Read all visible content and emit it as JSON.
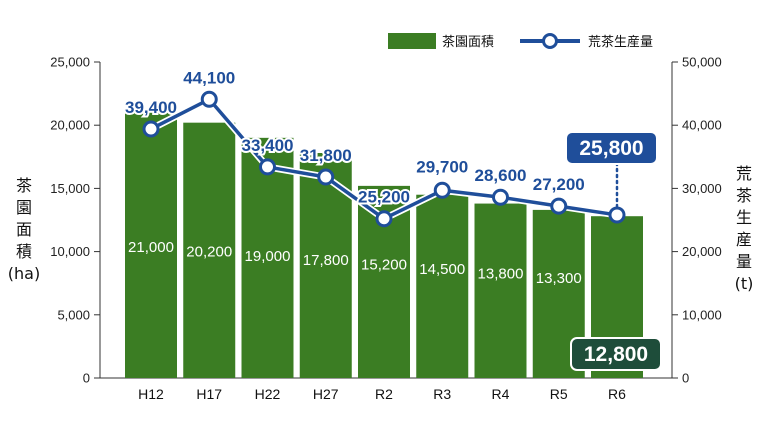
{
  "chart_data": {
    "type": "bar",
    "categories": [
      "H12",
      "H17",
      "H22",
      "H27",
      "R2",
      "R3",
      "R4",
      "R5",
      "R6"
    ],
    "series": [
      {
        "name": "茶園面積",
        "type": "bar",
        "axis": "left",
        "color": "#3b7d23",
        "values": [
          21000,
          20200,
          19000,
          17800,
          15200,
          14500,
          13800,
          13300,
          12800
        ]
      },
      {
        "name": "荒茶生産量",
        "type": "line",
        "axis": "right",
        "color": "#1f4e9a",
        "values": [
          39400,
          44100,
          33400,
          31800,
          25200,
          29700,
          28600,
          27200,
          25800
        ]
      }
    ],
    "bar_labels": [
      "21,000",
      "20,200",
      "19,000",
      "17,800",
      "15,200",
      "14,500",
      "13,800",
      "13,300",
      "12,800"
    ],
    "line_labels": [
      "39,400",
      "44,100",
      "33,400",
      "31,800",
      "25,200",
      "29,700",
      "28,600",
      "27,200",
      "25,800"
    ],
    "y_left": {
      "label": [
        "茶",
        "園",
        "面",
        "積",
        "(ha)"
      ],
      "lim": [
        0,
        25000
      ],
      "ticks": [
        0,
        5000,
        10000,
        15000,
        20000,
        25000
      ],
      "tick_labels": [
        "0",
        "5,000",
        "10,000",
        "15,000",
        "20,000",
        "25,000"
      ]
    },
    "y_right": {
      "label": [
        "荒",
        "茶",
        "生",
        "産",
        "量",
        "(t)"
      ],
      "lim": [
        0,
        50000
      ],
      "ticks": [
        0,
        10000,
        20000,
        30000,
        40000,
        50000
      ],
      "tick_labels": [
        "0",
        "10,000",
        "20,000",
        "30,000",
        "40,000",
        "50,000"
      ]
    },
    "legend": [
      "茶園面積",
      "荒茶生産量"
    ],
    "legend_position": "top-right",
    "highlight_bar_color": "#1e4d3a",
    "highlight_line_color": "#1f4e9a"
  }
}
